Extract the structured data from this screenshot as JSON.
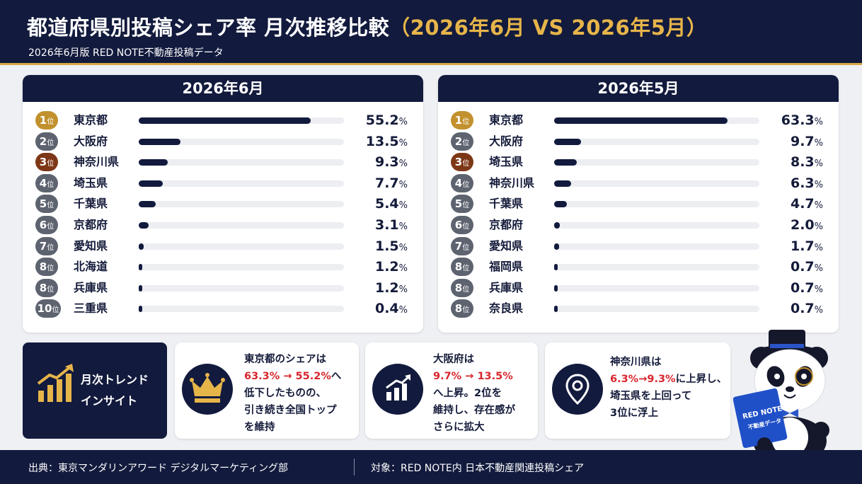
{
  "header": {
    "title_main": "都道府県別投稿シェア率 月次推移比較",
    "title_compare": "（2026年6月 VS 2026年5月）",
    "subtitle": "2026年6月版 RED NOTE不動産投稿データ"
  },
  "chart_data": [
    {
      "type": "bar",
      "title": "2026年6月",
      "unit": "%",
      "xlim": [
        0,
        66
      ],
      "rows": [
        {
          "rank": "1",
          "rank_suffix": "位",
          "name": "東京都",
          "value": 55.2
        },
        {
          "rank": "2",
          "rank_suffix": "位",
          "name": "大阪府",
          "value": 13.5
        },
        {
          "rank": "3",
          "rank_suffix": "位",
          "name": "神奈川県",
          "value": 9.3
        },
        {
          "rank": "4",
          "rank_suffix": "位",
          "name": "埼玉県",
          "value": 7.7
        },
        {
          "rank": "5",
          "rank_suffix": "位",
          "name": "千葉県",
          "value": 5.4
        },
        {
          "rank": "6",
          "rank_suffix": "位",
          "name": "京都府",
          "value": 3.1
        },
        {
          "rank": "7",
          "rank_suffix": "位",
          "name": "愛知県",
          "value": 1.5
        },
        {
          "rank": "8",
          "rank_suffix": "位",
          "name": "北海道",
          "value": 1.2
        },
        {
          "rank": "8",
          "rank_suffix": "位",
          "name": "兵庫県",
          "value": 1.2
        },
        {
          "rank": "10",
          "rank_suffix": "位",
          "name": "三重県",
          "value": 0.4
        }
      ]
    },
    {
      "type": "bar",
      "title": "2026年5月",
      "unit": "%",
      "xlim": [
        0,
        75
      ],
      "rows": [
        {
          "rank": "1",
          "rank_suffix": "位",
          "name": "東京都",
          "value": 63.3
        },
        {
          "rank": "2",
          "rank_suffix": "位",
          "name": "大阪府",
          "value": 9.7
        },
        {
          "rank": "3",
          "rank_suffix": "位",
          "name": "埼玉県",
          "value": 8.3
        },
        {
          "rank": "4",
          "rank_suffix": "位",
          "name": "神奈川県",
          "value": 6.3
        },
        {
          "rank": "5",
          "rank_suffix": "位",
          "name": "千葉県",
          "value": 4.7
        },
        {
          "rank": "6",
          "rank_suffix": "位",
          "name": "京都府",
          "value": 2.0
        },
        {
          "rank": "7",
          "rank_suffix": "位",
          "name": "愛知県",
          "value": 1.7
        },
        {
          "rank": "8",
          "rank_suffix": "位",
          "name": "福岡県",
          "value": 0.7
        },
        {
          "rank": "8",
          "rank_suffix": "位",
          "name": "兵庫県",
          "value": 0.7
        },
        {
          "rank": "8",
          "rank_suffix": "位",
          "name": "奈良県",
          "value": 0.7
        }
      ]
    }
  ],
  "colors": {
    "navy": "#121a3d",
    "gold": "#e6b54a",
    "rank1": "#c2912e",
    "rank3": "#7d3717",
    "rank_other": "#5e6370",
    "highlight_red": "#d8262d"
  },
  "insights": {
    "label": "月次トレンド\nインサイト",
    "icon": "growth-chart-icon",
    "cards": [
      {
        "icon": "crown-icon",
        "line1": "東京都のシェアは",
        "red": "63.3% → 55.2%",
        "red_after": "へ",
        "line3": "低下したものの、",
        "line4": "引き続き全国トップ",
        "line5": "を維持"
      },
      {
        "icon": "rising-bars-icon",
        "line1": "大阪府は",
        "red": "9.7% → 13.5%",
        "red_after": "",
        "line3": "へ上昇。2位を",
        "line4": "維持し、存在感が",
        "line5": "さらに拡大"
      },
      {
        "icon": "location-pin-icon",
        "line1": "神奈川県は",
        "red": "6.3%→9.3%",
        "red_after": "に上昇し、",
        "line3": "埼玉県を上回って",
        "line4": "3位に浮上",
        "line5": ""
      }
    ]
  },
  "mascot": {
    "icon": "panda-mascot-icon",
    "book_line1": "RED NOTE",
    "book_line2": "不動産データ"
  },
  "footer": {
    "source": "出典：東京マンダリンアワード デジタルマーケティング部",
    "target": "対象：RED NOTE内 日本不動産関連投稿シェア"
  }
}
